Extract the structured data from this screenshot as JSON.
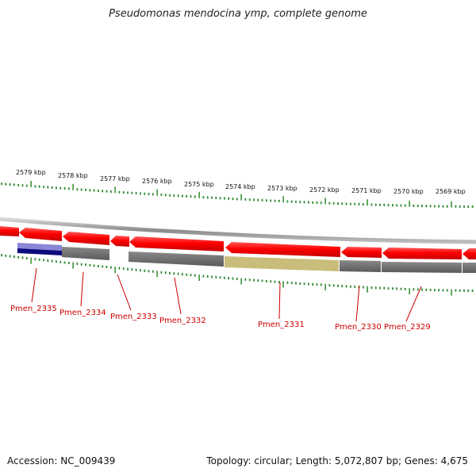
{
  "title": "Pseudomonas mendocina ymp, complete genome",
  "footer": {
    "accession": "Accession: NC_009439",
    "topology": "Topology: circular; Length: 5,072,807 bp; Genes: 4,675"
  },
  "scale_labels": [
    "2579 kbp",
    "2578 kbp",
    "2577 kbp",
    "2576 kbp",
    "2575 kbp",
    "2574 kbp",
    "2573 kbp",
    "2572 kbp",
    "2571 kbp",
    "2570 kbp",
    "2569 kbp"
  ],
  "genes": [
    {
      "name": "Pmen_2335"
    },
    {
      "name": "Pmen_2334"
    },
    {
      "name": "Pmen_2333"
    },
    {
      "name": "Pmen_2332"
    },
    {
      "name": "Pmen_2331"
    },
    {
      "name": "Pmen_2330"
    },
    {
      "name": "Pmen_2329"
    }
  ],
  "colors": {
    "cds": "#ff0000",
    "backbone": "#9a9a9a",
    "feature_gray": "#6e6e6e",
    "feature_olive": "#c8bd7a",
    "feature_blue": "#8a86d6",
    "feature_navy": "#0b0b7e",
    "ticks": "#2f8a2f",
    "gene_label": "#cc0000"
  }
}
